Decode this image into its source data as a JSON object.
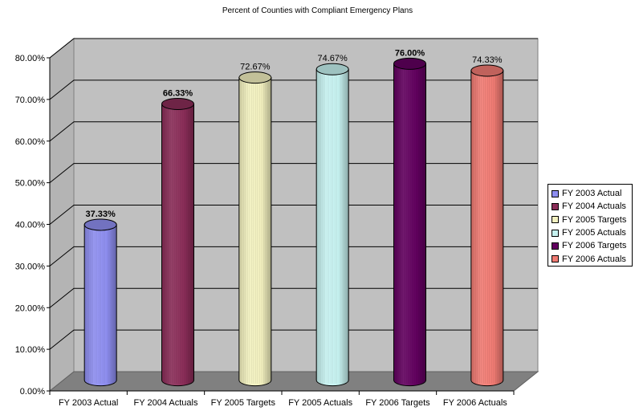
{
  "chart_data": {
    "type": "bar",
    "title": "Percent of Counties with Compliant Emergency Plans",
    "xlabel": "",
    "ylabel": "",
    "ylim": [
      0,
      80
    ],
    "yticks": [
      "0.00%",
      "10.00%",
      "20.00%",
      "30.00%",
      "40.00%",
      "50.00%",
      "60.00%",
      "70.00%",
      "80.00%"
    ],
    "grid": true,
    "legend_position": "right",
    "categories": [
      "FY 2003 Actual",
      "FY 2004 Actuals",
      "FY 2005 Targets",
      "FY 2005 Actuals",
      "FY 2006 Targets",
      "FY 2006 Actuals"
    ],
    "values": [
      37.33,
      66.33,
      72.67,
      74.67,
      76.0,
      74.33
    ],
    "data_labels": [
      "37.33%",
      "66.33%",
      "72.67%",
      "74.67%",
      "76.00%",
      "74.33%"
    ],
    "label_bold": [
      true,
      true,
      false,
      false,
      true,
      false
    ],
    "colors": [
      "#8e8ef0",
      "#8a2d58",
      "#f2f0bf",
      "#c6f2f0",
      "#62005f",
      "#f07b73"
    ],
    "legend": [
      "FY 2003 Actual",
      "FY 2004 Actuals",
      "FY 2005 Targets",
      "FY 2005 Actuals",
      "FY 2006 Targets",
      "FY 2006 Actuals"
    ]
  }
}
